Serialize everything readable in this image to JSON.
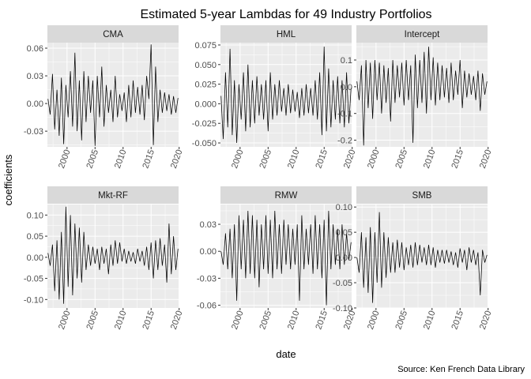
{
  "title": "Estimated 5-year Lambdas for 49 Industry Portfolios",
  "xlabel": "date",
  "ylabel": "coefficients",
  "caption": "Source: Ken French Data Library",
  "chart_data": {
    "type": "line",
    "title": "Estimated 5-year Lambdas for 49 Industry Portfolios",
    "xlabel": "date",
    "ylabel": "coefficients",
    "caption": "Source: Ken French Data Library",
    "x_range": [
      1996.5,
      2019.9
    ],
    "x_ticks": [
      2000,
      2005,
      2010,
      2015,
      2020
    ],
    "grid": true,
    "series_color": "#000000",
    "panels": [
      {
        "name": "CMA",
        "ylim": [
          -0.047,
          0.066
        ],
        "y_ticks": [
          -0.03,
          0.0,
          0.03,
          0.06
        ],
        "y_tick_labels": [
          "-0.03",
          "0.00",
          "0.03",
          "0.06"
        ],
        "x": [
          1996.6,
          1997.0,
          1997.4,
          1997.8,
          1998.2,
          1998.6,
          1999.0,
          1999.4,
          1999.8,
          2000.2,
          2000.6,
          2001.0,
          2001.4,
          2001.8,
          2002.2,
          2002.6,
          2003.0,
          2003.4,
          2003.8,
          2004.2,
          2004.6,
          2005.0,
          2005.4,
          2005.8,
          2006.2,
          2006.6,
          2007.0,
          2007.4,
          2007.8,
          2008.2,
          2008.6,
          2009.0,
          2009.4,
          2009.8,
          2010.2,
          2010.6,
          2011.0,
          2011.4,
          2011.8,
          2012.2,
          2012.6,
          2013.0,
          2013.4,
          2013.8,
          2014.2,
          2014.6,
          2015.0,
          2015.4,
          2015.8,
          2016.2,
          2016.6,
          2017.0,
          2017.4,
          2017.8,
          2018.2,
          2018.6,
          2019.0,
          2019.4,
          2019.8
        ],
        "values": [
          0.005,
          -0.012,
          0.032,
          -0.028,
          0.015,
          -0.035,
          0.028,
          -0.044,
          0.02,
          -0.015,
          0.035,
          -0.025,
          0.055,
          -0.03,
          0.025,
          -0.04,
          0.035,
          -0.02,
          0.03,
          -0.01,
          0.025,
          -0.046,
          0.03,
          -0.015,
          0.04,
          -0.025,
          0.02,
          -0.01,
          0.015,
          -0.02,
          0.03,
          -0.015,
          0.01,
          -0.008,
          0.012,
          -0.02,
          0.02,
          -0.015,
          0.025,
          -0.01,
          0.018,
          -0.012,
          0.02,
          -0.018,
          0.03,
          0.005,
          0.064,
          -0.045,
          0.04,
          -0.02,
          0.015,
          -0.01,
          0.012,
          -0.008,
          0.01,
          -0.012,
          0.008,
          -0.01,
          0.006
        ]
      },
      {
        "name": "HML",
        "ylim": [
          -0.055,
          0.078
        ],
        "y_ticks": [
          -0.05,
          -0.025,
          0.0,
          0.025,
          0.05,
          0.075
        ],
        "y_tick_labels": [
          "-0.050",
          "-0.025",
          "0.000",
          "0.025",
          "0.050",
          "0.075"
        ],
        "x": [
          1996.6,
          1997.0,
          1997.4,
          1997.8,
          1998.2,
          1998.6,
          1999.0,
          1999.4,
          1999.8,
          2000.2,
          2000.6,
          2001.0,
          2001.4,
          2001.8,
          2002.2,
          2002.6,
          2003.0,
          2003.4,
          2003.8,
          2004.2,
          2004.6,
          2005.0,
          2005.4,
          2005.8,
          2006.2,
          2006.6,
          2007.0,
          2007.4,
          2007.8,
          2008.2,
          2008.6,
          2009.0,
          2009.4,
          2009.8,
          2010.2,
          2010.6,
          2011.0,
          2011.4,
          2011.8,
          2012.2,
          2012.6,
          2013.0,
          2013.4,
          2013.8,
          2014.2,
          2014.6,
          2015.0,
          2015.4,
          2015.8,
          2016.2,
          2016.6,
          2017.0,
          2017.4,
          2017.8,
          2018.2,
          2018.6,
          2019.0,
          2019.4,
          2019.8
        ],
        "values": [
          0.01,
          -0.045,
          0.04,
          -0.03,
          0.07,
          -0.04,
          0.03,
          -0.05,
          0.025,
          -0.02,
          0.04,
          -0.035,
          0.05,
          -0.03,
          0.03,
          -0.025,
          0.035,
          -0.015,
          0.025,
          -0.02,
          0.03,
          -0.035,
          0.04,
          -0.02,
          0.025,
          -0.015,
          0.03,
          -0.01,
          0.02,
          -0.015,
          0.025,
          -0.012,
          0.018,
          -0.01,
          0.015,
          -0.018,
          0.02,
          -0.015,
          0.025,
          -0.012,
          0.02,
          -0.015,
          0.03,
          -0.02,
          0.04,
          -0.04,
          0.073,
          -0.035,
          0.045,
          -0.03,
          0.03,
          -0.02,
          0.035,
          -0.025,
          0.03,
          -0.03,
          0.04,
          -0.025,
          0.02
        ]
      },
      {
        "name": "Intercept",
        "ylim": [
          -0.225,
          0.165
        ],
        "y_ticks": [
          -0.2,
          -0.1,
          0.0,
          0.1
        ],
        "y_tick_labels": [
          "-0.2",
          "-0.1",
          "0.0",
          "0.1"
        ],
        "x": [
          1996.6,
          1997.0,
          1997.4,
          1997.8,
          1998.2,
          1998.6,
          1999.0,
          1999.4,
          1999.8,
          2000.2,
          2000.6,
          2001.0,
          2001.4,
          2001.8,
          2002.2,
          2002.6,
          2003.0,
          2003.4,
          2003.8,
          2004.2,
          2004.6,
          2005.0,
          2005.4,
          2005.8,
          2006.2,
          2006.6,
          2007.0,
          2007.4,
          2007.8,
          2008.2,
          2008.6,
          2009.0,
          2009.4,
          2009.8,
          2010.2,
          2010.6,
          2011.0,
          2011.4,
          2011.8,
          2012.2,
          2012.6,
          2013.0,
          2013.4,
          2013.8,
          2014.2,
          2014.6,
          2015.0,
          2015.4,
          2015.8,
          2016.2,
          2016.6,
          2017.0,
          2017.4,
          2017.8,
          2018.2,
          2018.6,
          2019.0,
          2019.4,
          2019.8
        ],
        "values": [
          0.02,
          -0.05,
          0.08,
          -0.22,
          0.1,
          -0.08,
          0.09,
          -0.12,
          0.1,
          -0.05,
          0.09,
          -0.1,
          0.08,
          -0.06,
          0.07,
          -0.13,
          0.1,
          -0.06,
          0.08,
          -0.04,
          0.09,
          -0.07,
          0.1,
          -0.05,
          0.08,
          -0.21,
          0.12,
          -0.08,
          0.1,
          -0.06,
          0.13,
          -0.1,
          0.15,
          -0.05,
          0.11,
          -0.07,
          0.09,
          -0.05,
          0.08,
          -0.04,
          0.07,
          -0.06,
          0.09,
          -0.05,
          0.06,
          -0.03,
          0.1,
          -0.08,
          0.06,
          -0.04,
          0.05,
          -0.03,
          0.04,
          -0.05,
          0.06,
          -0.09,
          0.05,
          -0.03,
          0.02
        ]
      },
      {
        "name": "Mkt-RF",
        "ylim": [
          -0.12,
          0.125
        ],
        "y_ticks": [
          -0.1,
          -0.05,
          0.0,
          0.05,
          0.1
        ],
        "y_tick_labels": [
          "-0.10",
          "-0.05",
          "0.00",
          "0.05",
          "0.10"
        ],
        "x": [
          1996.6,
          1997.0,
          1997.4,
          1997.8,
          1998.2,
          1998.6,
          1999.0,
          1999.4,
          1999.8,
          2000.2,
          2000.6,
          2001.0,
          2001.4,
          2001.8,
          2002.2,
          2002.6,
          2003.0,
          2003.4,
          2003.8,
          2004.2,
          2004.6,
          2005.0,
          2005.4,
          2005.8,
          2006.2,
          2006.6,
          2007.0,
          2007.4,
          2007.8,
          2008.2,
          2008.6,
          2009.0,
          2009.4,
          2009.8,
          2010.2,
          2010.6,
          2011.0,
          2011.4,
          2011.8,
          2012.2,
          2012.6,
          2013.0,
          2013.4,
          2013.8,
          2014.2,
          2014.6,
          2015.0,
          2015.4,
          2015.8,
          2016.2,
          2016.6,
          2017.0,
          2017.4,
          2017.8,
          2018.2,
          2018.6,
          2019.0,
          2019.4,
          2019.8
        ],
        "values": [
          0.01,
          -0.02,
          0.03,
          -0.08,
          0.04,
          -0.1,
          0.06,
          -0.11,
          0.12,
          -0.07,
          0.1,
          -0.09,
          0.08,
          -0.05,
          0.07,
          -0.06,
          0.06,
          -0.03,
          0.03,
          -0.02,
          0.025,
          -0.015,
          0.02,
          -0.03,
          0.025,
          -0.015,
          0.02,
          -0.04,
          0.03,
          -0.02,
          0.04,
          -0.015,
          0.035,
          -0.01,
          0.02,
          -0.015,
          0.015,
          -0.01,
          0.012,
          -0.015,
          0.02,
          -0.01,
          0.015,
          -0.02,
          0.025,
          -0.03,
          0.035,
          -0.05,
          0.04,
          -0.03,
          0.045,
          -0.02,
          0.03,
          -0.06,
          0.08,
          -0.04,
          0.05,
          -0.03,
          0.02
        ]
      },
      {
        "name": "RMW",
        "ylim": [
          -0.063,
          0.052
        ],
        "y_ticks": [
          -0.06,
          -0.03,
          0.0,
          0.03
        ],
        "y_tick_labels": [
          "-0.06",
          "-0.03",
          "0.00",
          "0.03"
        ],
        "x": [
          1996.6,
          1997.0,
          1997.4,
          1997.8,
          1998.2,
          1998.6,
          1999.0,
          1999.4,
          1999.8,
          2000.2,
          2000.6,
          2001.0,
          2001.4,
          2001.8,
          2002.2,
          2002.6,
          2003.0,
          2003.4,
          2003.8,
          2004.2,
          2004.6,
          2005.0,
          2005.4,
          2005.8,
          2006.2,
          2006.6,
          2007.0,
          2007.4,
          2007.8,
          2008.2,
          2008.6,
          2009.0,
          2009.4,
          2009.8,
          2010.2,
          2010.6,
          2011.0,
          2011.4,
          2011.8,
          2012.2,
          2012.6,
          2013.0,
          2013.4,
          2013.8,
          2014.2,
          2014.6,
          2015.0,
          2015.4,
          2015.8,
          2016.2,
          2016.6,
          2017.0,
          2017.4,
          2017.8,
          2018.2,
          2018.6,
          2019.0,
          2019.4,
          2019.8
        ],
        "values": [
          0.0,
          -0.015,
          0.02,
          -0.02,
          0.025,
          -0.03,
          0.03,
          -0.055,
          0.04,
          -0.02,
          0.035,
          -0.03,
          0.045,
          -0.025,
          0.04,
          -0.03,
          0.035,
          -0.04,
          0.03,
          -0.02,
          0.04,
          -0.025,
          0.035,
          -0.03,
          0.045,
          -0.02,
          0.03,
          -0.025,
          0.035,
          -0.015,
          0.03,
          -0.02,
          0.025,
          -0.015,
          0.03,
          -0.055,
          0.04,
          -0.02,
          0.025,
          -0.015,
          0.03,
          -0.025,
          0.04,
          -0.02,
          0.03,
          -0.03,
          0.035,
          -0.06,
          0.045,
          -0.02,
          0.03,
          -0.015,
          0.025,
          -0.02,
          0.03,
          -0.015,
          0.02,
          -0.01,
          0.01
        ]
      },
      {
        "name": "SMB",
        "ylim": [
          -0.1,
          0.105
        ],
        "y_ticks": [
          -0.1,
          -0.05,
          0.0,
          0.05,
          0.1
        ],
        "y_tick_labels": [
          "-0.10",
          "-0.05",
          "0.00",
          "0.05",
          "0.10"
        ],
        "x": [
          1996.6,
          1997.0,
          1997.4,
          1997.8,
          1998.2,
          1998.6,
          1999.0,
          1999.4,
          1999.8,
          2000.2,
          2000.6,
          2001.0,
          2001.4,
          2001.8,
          2002.2,
          2002.6,
          2003.0,
          2003.4,
          2003.8,
          2004.2,
          2004.6,
          2005.0,
          2005.4,
          2005.8,
          2006.2,
          2006.6,
          2007.0,
          2007.4,
          2007.8,
          2008.2,
          2008.6,
          2009.0,
          2009.4,
          2009.8,
          2010.2,
          2010.6,
          2011.0,
          2011.4,
          2011.8,
          2012.2,
          2012.6,
          2013.0,
          2013.4,
          2013.8,
          2014.2,
          2014.6,
          2015.0,
          2015.4,
          2015.8,
          2016.2,
          2016.6,
          2017.0,
          2017.4,
          2017.8,
          2018.2,
          2018.6,
          2019.0,
          2019.4,
          2019.8
        ],
        "values": [
          0.0,
          -0.03,
          0.05,
          -0.06,
          0.04,
          -0.07,
          0.06,
          -0.09,
          0.05,
          -0.05,
          0.09,
          -0.06,
          0.05,
          -0.04,
          0.04,
          -0.03,
          0.03,
          -0.03,
          0.035,
          -0.02,
          0.03,
          -0.025,
          0.02,
          -0.015,
          0.025,
          -0.02,
          0.03,
          -0.015,
          0.025,
          -0.01,
          0.02,
          -0.015,
          0.025,
          -0.015,
          0.02,
          -0.02,
          0.015,
          -0.01,
          0.015,
          -0.012,
          0.015,
          -0.01,
          0.012,
          -0.015,
          0.01,
          -0.02,
          0.018,
          -0.01,
          0.015,
          -0.025,
          0.02,
          -0.01,
          0.015,
          -0.015,
          0.01,
          -0.075,
          0.015,
          -0.01,
          0.005
        ]
      }
    ]
  }
}
